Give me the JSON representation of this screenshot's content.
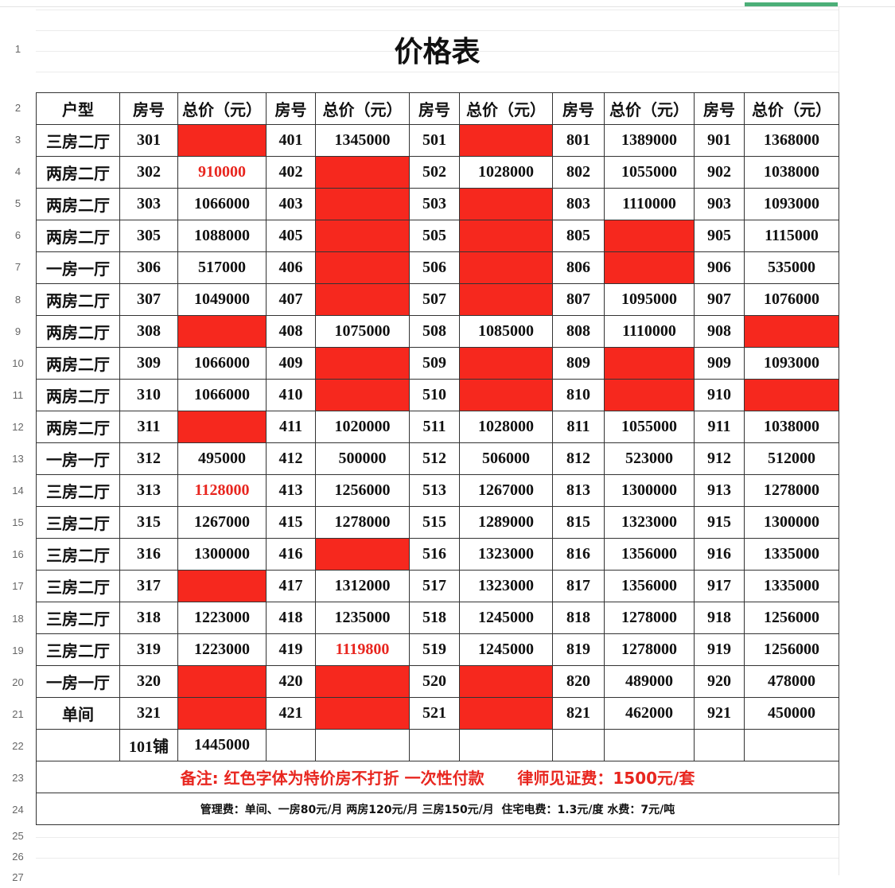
{
  "title": "价格表",
  "row_numbers": [
    "1",
    "2",
    "3",
    "4",
    "5",
    "6",
    "7",
    "8",
    "9",
    "10",
    "11",
    "12",
    "13",
    "14",
    "15",
    "16",
    "17",
    "18",
    "19",
    "20",
    "21",
    "22",
    "23",
    "24",
    "25",
    "26",
    "27"
  ],
  "colors": {
    "red_fill": "#f6281e",
    "red_text": "#e8261f",
    "selection": "#4caf78"
  },
  "headers": [
    "户型",
    "房号",
    "总价（元）",
    "房号",
    "总价（元）",
    "房号",
    "总价（元）",
    "房号",
    "总价（元）",
    "房号",
    "总价（元）"
  ],
  "rows": [
    {
      "type": "三房二厅",
      "units": [
        [
          "301",
          "",
          "redfill"
        ],
        [
          "401",
          "1345000",
          ""
        ],
        [
          "501",
          "",
          "redfill"
        ],
        [
          "801",
          "1389000",
          ""
        ],
        [
          "901",
          "1368000",
          ""
        ]
      ]
    },
    {
      "type": "两房二厅",
      "units": [
        [
          "302",
          "910000",
          "redtext"
        ],
        [
          "402",
          "",
          "redfill"
        ],
        [
          "502",
          "1028000",
          ""
        ],
        [
          "802",
          "1055000",
          ""
        ],
        [
          "902",
          "1038000",
          ""
        ]
      ]
    },
    {
      "type": "两房二厅",
      "units": [
        [
          "303",
          "1066000",
          ""
        ],
        [
          "403",
          "",
          "redfill"
        ],
        [
          "503",
          "",
          "redfill"
        ],
        [
          "803",
          "1110000",
          ""
        ],
        [
          "903",
          "1093000",
          ""
        ]
      ]
    },
    {
      "type": "两房二厅",
      "units": [
        [
          "305",
          "1088000",
          ""
        ],
        [
          "405",
          "",
          "redfill"
        ],
        [
          "505",
          "",
          "redfill"
        ],
        [
          "805",
          "",
          "redfill"
        ],
        [
          "905",
          "1115000",
          ""
        ]
      ]
    },
    {
      "type": "一房一厅",
      "units": [
        [
          "306",
          "517000",
          ""
        ],
        [
          "406",
          "",
          "redfill"
        ],
        [
          "506",
          "",
          "redfill"
        ],
        [
          "806",
          "",
          "redfill"
        ],
        [
          "906",
          "535000",
          ""
        ]
      ]
    },
    {
      "type": "两房二厅",
      "units": [
        [
          "307",
          "1049000",
          ""
        ],
        [
          "407",
          "",
          "redfill"
        ],
        [
          "507",
          "",
          "redfill"
        ],
        [
          "807",
          "1095000",
          ""
        ],
        [
          "907",
          "1076000",
          ""
        ]
      ]
    },
    {
      "type": "两房二厅",
      "units": [
        [
          "308",
          "",
          "redfill"
        ],
        [
          "408",
          "1075000",
          ""
        ],
        [
          "508",
          "1085000",
          ""
        ],
        [
          "808",
          "1110000",
          ""
        ],
        [
          "908",
          "",
          "redfill"
        ]
      ]
    },
    {
      "type": "两房二厅",
      "units": [
        [
          "309",
          "1066000",
          ""
        ],
        [
          "409",
          "",
          "redfill"
        ],
        [
          "509",
          "",
          "redfill"
        ],
        [
          "809",
          "",
          "redfill"
        ],
        [
          "909",
          "1093000",
          ""
        ]
      ]
    },
    {
      "type": "两房二厅",
      "units": [
        [
          "310",
          "1066000",
          ""
        ],
        [
          "410",
          "",
          "redfill"
        ],
        [
          "510",
          "",
          "redfill"
        ],
        [
          "810",
          "",
          "redfill"
        ],
        [
          "910",
          "",
          "redfill"
        ]
      ]
    },
    {
      "type": "两房二厅",
      "units": [
        [
          "311",
          "",
          "redfill"
        ],
        [
          "411",
          "1020000",
          ""
        ],
        [
          "511",
          "1028000",
          ""
        ],
        [
          "811",
          "1055000",
          ""
        ],
        [
          "911",
          "1038000",
          ""
        ]
      ]
    },
    {
      "type": "一房一厅",
      "units": [
        [
          "312",
          "495000",
          ""
        ],
        [
          "412",
          "500000",
          ""
        ],
        [
          "512",
          "506000",
          ""
        ],
        [
          "812",
          "523000",
          ""
        ],
        [
          "912",
          "512000",
          ""
        ]
      ]
    },
    {
      "type": "三房二厅",
      "units": [
        [
          "313",
          "1128000",
          "redtext"
        ],
        [
          "413",
          "1256000",
          ""
        ],
        [
          "513",
          "1267000",
          ""
        ],
        [
          "813",
          "1300000",
          ""
        ],
        [
          "913",
          "1278000",
          ""
        ]
      ]
    },
    {
      "type": "三房二厅",
      "units": [
        [
          "315",
          "1267000",
          ""
        ],
        [
          "415",
          "1278000",
          ""
        ],
        [
          "515",
          "1289000",
          ""
        ],
        [
          "815",
          "1323000",
          ""
        ],
        [
          "915",
          "1300000",
          ""
        ]
      ]
    },
    {
      "type": "三房二厅",
      "units": [
        [
          "316",
          "1300000",
          ""
        ],
        [
          "416",
          "",
          "redfill"
        ],
        [
          "516",
          "1323000",
          ""
        ],
        [
          "816",
          "1356000",
          ""
        ],
        [
          "916",
          "1335000",
          ""
        ]
      ]
    },
    {
      "type": "三房二厅",
      "units": [
        [
          "317",
          "",
          "redfill"
        ],
        [
          "417",
          "1312000",
          ""
        ],
        [
          "517",
          "1323000",
          ""
        ],
        [
          "817",
          "1356000",
          ""
        ],
        [
          "917",
          "1335000",
          ""
        ]
      ]
    },
    {
      "type": "三房二厅",
      "units": [
        [
          "318",
          "1223000",
          ""
        ],
        [
          "418",
          "1235000",
          ""
        ],
        [
          "518",
          "1245000",
          ""
        ],
        [
          "818",
          "1278000",
          ""
        ],
        [
          "918",
          "1256000",
          ""
        ]
      ]
    },
    {
      "type": "三房二厅",
      "units": [
        [
          "319",
          "1223000",
          ""
        ],
        [
          "419",
          "1119800",
          "redtext"
        ],
        [
          "519",
          "1245000",
          ""
        ],
        [
          "819",
          "1278000",
          ""
        ],
        [
          "919",
          "1256000",
          ""
        ]
      ]
    },
    {
      "type": "一房一厅",
      "units": [
        [
          "320",
          "",
          "redfill"
        ],
        [
          "420",
          "",
          "redfill"
        ],
        [
          "520",
          "",
          "redfill"
        ],
        [
          "820",
          "489000",
          ""
        ],
        [
          "920",
          "478000",
          ""
        ]
      ]
    },
    {
      "type": "单间",
      "units": [
        [
          "321",
          "",
          "redfill"
        ],
        [
          "421",
          "",
          "redfill"
        ],
        [
          "521",
          "",
          "redfill"
        ],
        [
          "821",
          "462000",
          ""
        ],
        [
          "921",
          "450000",
          ""
        ]
      ]
    },
    {
      "type": "",
      "units": [
        [
          "101铺",
          "1445000",
          ""
        ],
        [
          "",
          "",
          ""
        ],
        [
          "",
          "",
          ""
        ],
        [
          "",
          "",
          ""
        ],
        [
          "",
          "",
          ""
        ]
      ]
    }
  ],
  "notes": {
    "remark": "备注: 红色字体为特价房不打折 一次性付款      律师见证费：1500元/套",
    "fees": "管理费：单间、一房80元/月 两房120元/月 三房150元/月  住宅电费：1.3元/度 水费：7元/吨"
  }
}
